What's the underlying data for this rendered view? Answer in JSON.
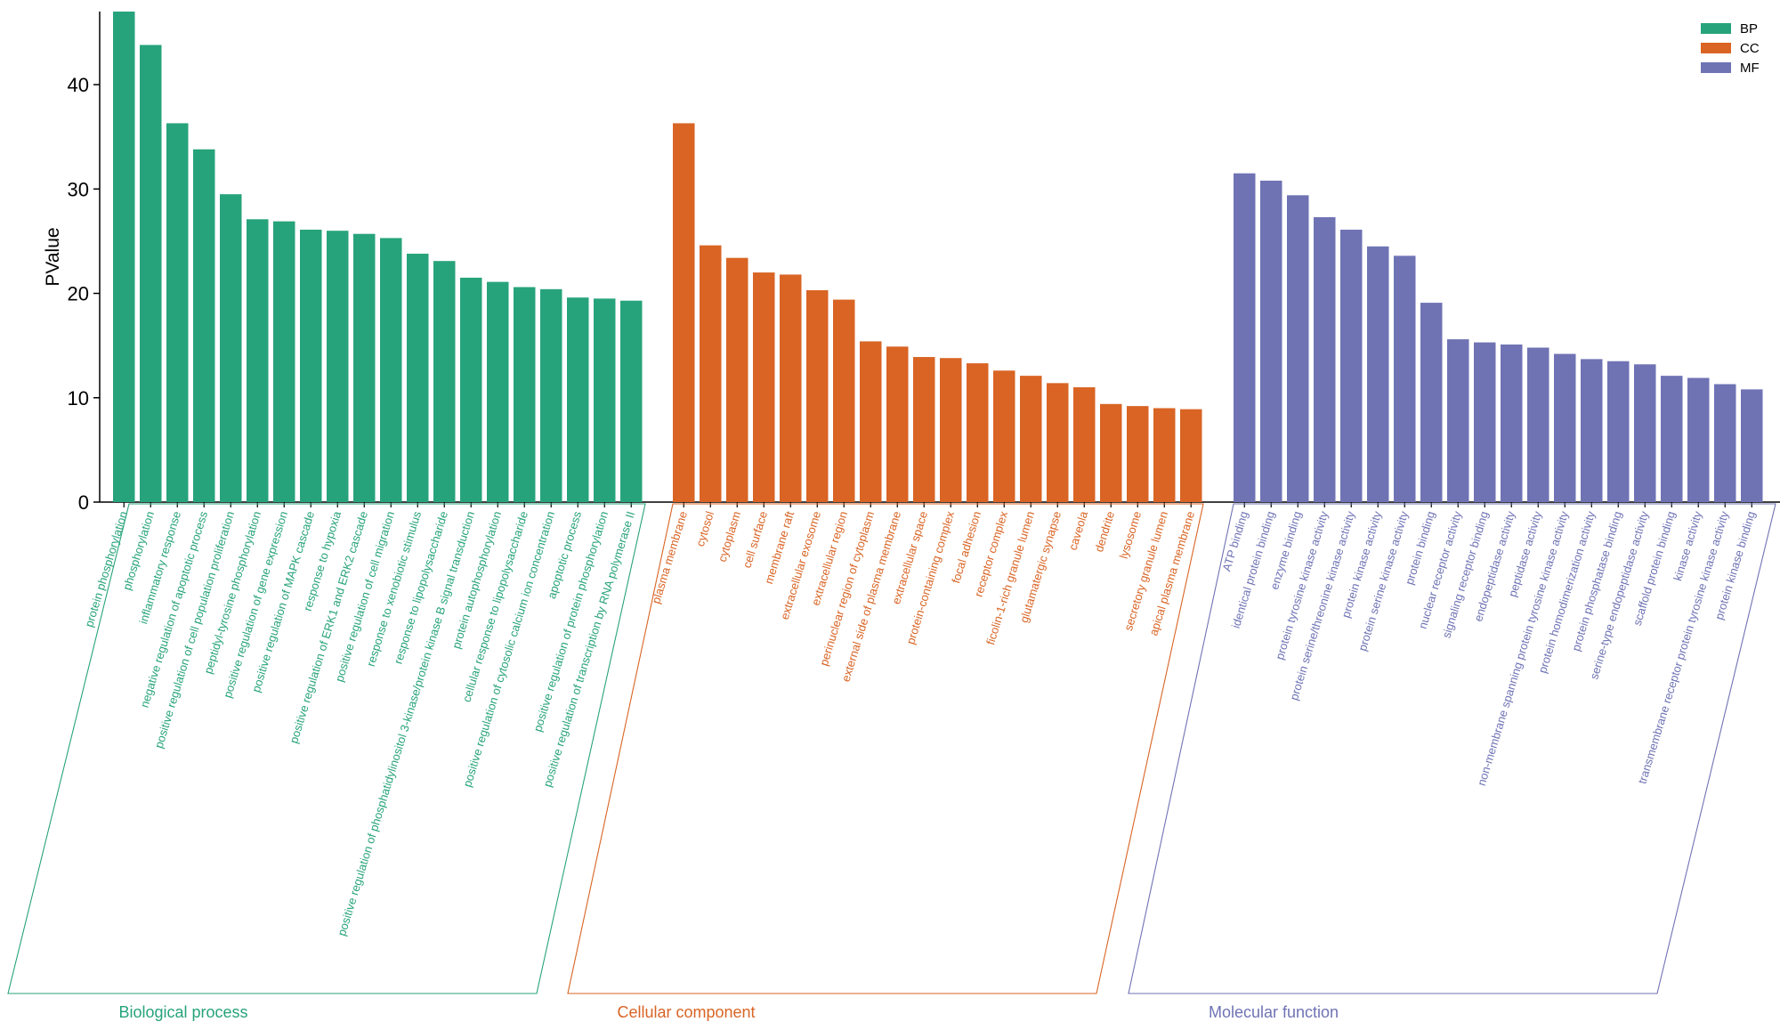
{
  "chart_data": {
    "type": "bar",
    "title": "",
    "xlabel": "",
    "ylabel": "PValue",
    "ylim": [
      0,
      47
    ],
    "yticks": [
      0,
      10,
      20,
      30,
      40
    ],
    "grid": false,
    "legend_position": "top-right",
    "groups": [
      {
        "key": "BP",
        "name": "Biological process",
        "color": "#27a37b",
        "categories": [
          "protein phosphorylation",
          "phosphorylation",
          "inflammatory response",
          "negative regulation of apoptotic process",
          "positive regulation of cell population proliferation",
          "peptidyl-tyrosine phosphorylation",
          "positive regulation of gene expression",
          "positive regulation of MAPK cascade",
          "response to hypoxia",
          "positive regulation of ERK1 and ERK2 cascade",
          "positive regulation of cell migration",
          "response to xenobiotic stimulus",
          "response to lipopolysaccharide",
          "positive regulation of phosphatidylinositol 3-kinase/protein kinase B signal transduction",
          "protein autophosphorylation",
          "cellular response to lipopolysaccharide",
          "positive regulation of cytosolic calcium ion concentration",
          "apoptotic process",
          "positive regulation of protein phosphorylation",
          "positive regulation of transcription by RNA polymerase II"
        ],
        "values": [
          47.0,
          43.8,
          36.3,
          33.8,
          29.5,
          27.1,
          26.9,
          26.1,
          26.0,
          25.7,
          25.3,
          23.8,
          23.1,
          21.5,
          21.1,
          20.6,
          20.4,
          19.6,
          19.5,
          19.3
        ]
      },
      {
        "key": "CC",
        "name": "Cellular component",
        "color": "#d96424",
        "categories": [
          "plasma membrane",
          "cytosol",
          "cytoplasm",
          "cell surface",
          "membrane raft",
          "extracellular exosome",
          "extracellular region",
          "perinuclear region of cytoplasm",
          "external side of plasma membrane",
          "extracellular space",
          "protein-containing complex",
          "focal adhesion",
          "receptor complex",
          "ficolin-1-rich granule lumen",
          "glutamatergic synapse",
          "caveola",
          "dendrite",
          "lysosome",
          "secretory granule lumen",
          "apical plasma membrane"
        ],
        "values": [
          36.3,
          24.6,
          23.4,
          22.0,
          21.8,
          20.3,
          19.4,
          15.4,
          14.9,
          13.9,
          13.8,
          13.3,
          12.6,
          12.1,
          11.4,
          11.0,
          9.4,
          9.2,
          9.0,
          8.9
        ]
      },
      {
        "key": "MF",
        "name": "Molecular function",
        "color": "#6f73b4",
        "categories": [
          "ATP binding",
          "identical protein binding",
          "enzyme binding",
          "protein tyrosine kinase activity",
          "protein serine/threonine kinase activity",
          "protein kinase activity",
          "protein serine kinase activity",
          "protein binding",
          "nuclear receptor activity",
          "signaling receptor binding",
          "endopeptidase activity",
          "peptidase activity",
          "non-membrane spanning protein tyrosine kinase activity",
          "protein homodimerization activity",
          "protein phosphatase binding",
          "serine-type endopeptidase activity",
          "scaffold protein binding",
          "kinase activity",
          "transmembrane receptor protein tyrosine kinase activity",
          "protein kinase binding"
        ],
        "values": [
          31.5,
          30.8,
          29.4,
          27.3,
          26.1,
          24.5,
          23.6,
          19.1,
          15.6,
          15.3,
          15.1,
          14.8,
          14.2,
          13.7,
          13.5,
          13.2,
          12.1,
          11.9,
          11.3,
          10.8
        ]
      }
    ]
  }
}
